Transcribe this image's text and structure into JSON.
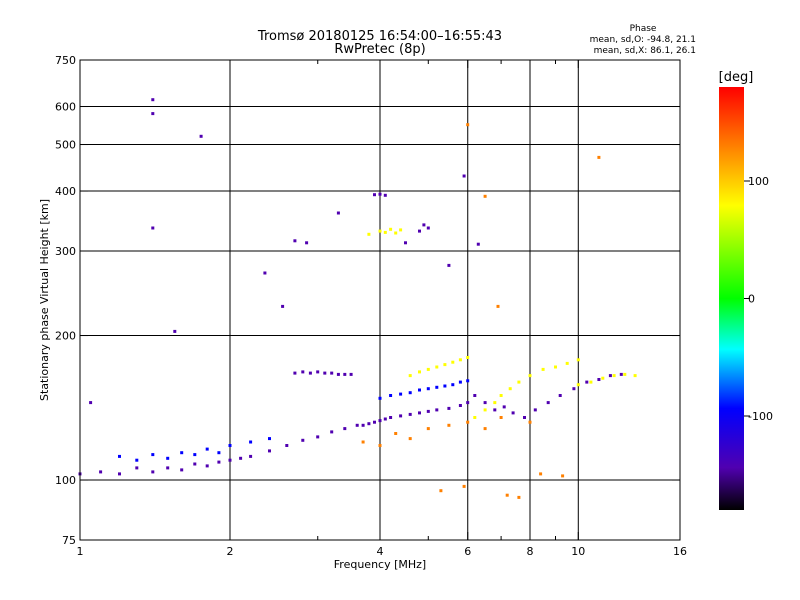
{
  "chart_data": {
    "type": "scatter",
    "title": "Tromsø 20180125 16:54:00–16:55:43",
    "subtitle": "RwPretec (8p)",
    "xlabel": "Frequency [MHz]",
    "ylabel": "Stationary phase Virtual Height [km]",
    "xscale": "log",
    "yscale": "log",
    "xlim": [
      1,
      16
    ],
    "ylim": [
      75,
      750
    ],
    "x_ticks": [
      1,
      2,
      4,
      6,
      8,
      10,
      16
    ],
    "x_tick_labels": [
      "1",
      "2",
      "4",
      "6",
      "8",
      "10",
      "16"
    ],
    "x_minor_ticks": [
      3,
      5,
      7,
      9
    ],
    "x_gridlines": [
      2,
      4,
      6,
      8,
      10
    ],
    "y_ticks": [
      75,
      100,
      200,
      300,
      400,
      500,
      600,
      750
    ],
    "y_tick_labels": [
      "75",
      "100",
      "200",
      "300",
      "400",
      "500",
      "600",
      "750"
    ],
    "y_gridlines": [
      100,
      200,
      300,
      400,
      500,
      600
    ],
    "grid": true,
    "stats": {
      "header": "Phase",
      "o_line": "mean, sd,O: -94.8, 21.1",
      "x_line": "mean, sd,X:  86.1, 26.1"
    },
    "colorbar": {
      "label": "[deg]",
      "range": [
        -180,
        180
      ],
      "ticks": [
        100,
        0,
        -100
      ],
      "tick_labels": [
        "100",
        "0",
        "-100"
      ],
      "colors": [
        "#ff0000",
        "#ff8000",
        "#ffff00",
        "#00ff00",
        "#00ffff",
        "#0000ff",
        "#5000b0",
        "#000000"
      ]
    },
    "traces": [
      {
        "name": "",
        "phase": -110,
        "x": [
          1.0,
          1.1,
          1.2,
          1.3,
          1.4,
          1.5,
          1.6,
          1.7,
          1.8,
          1.9,
          2.0,
          2.1,
          2.2,
          2.4,
          2.6,
          2.8,
          3.0,
          3.2,
          3.4,
          3.6
        ],
        "y": [
          103,
          104,
          103,
          106,
          104,
          106,
          105,
          108,
          107,
          109,
          110,
          111,
          112,
          115,
          118,
          121,
          123,
          126,
          128,
          130
        ]
      },
      {
        "name": "",
        "phase": -100,
        "x": [
          1.2,
          1.3,
          1.4,
          1.5,
          1.6,
          1.7,
          1.8,
          1.9,
          2.0,
          2.2,
          2.4
        ],
        "y": [
          112,
          110,
          113,
          111,
          114,
          113,
          116,
          114,
          118,
          120,
          122
        ]
      },
      {
        "name": "",
        "phase": -120,
        "x": [
          2.7,
          2.8,
          2.9,
          3.0,
          3.1,
          3.2,
          3.3,
          3.4,
          3.5
        ],
        "y": [
          167,
          168,
          167,
          168,
          167,
          167,
          166,
          166,
          166
        ]
      },
      {
        "name": "",
        "phase": -115,
        "x": [
          3.7,
          3.8,
          3.9,
          4.0,
          4.1,
          4.2,
          4.4,
          4.6,
          4.8,
          5.0,
          5.2,
          5.5,
          5.8,
          6.0
        ],
        "y": [
          130,
          131,
          132,
          133,
          134,
          135,
          136,
          137,
          138,
          139,
          140,
          141,
          143,
          145
        ]
      },
      {
        "name": "",
        "phase": -100,
        "x": [
          4.0,
          4.2,
          4.4,
          4.6,
          4.8,
          5.0,
          5.2,
          5.4,
          5.6,
          5.8,
          6.0
        ],
        "y": [
          148,
          150,
          151,
          152,
          154,
          155,
          156,
          157,
          158,
          160,
          161
        ]
      },
      {
        "name": "",
        "phase": 90,
        "x": [
          4.6,
          4.8,
          5.0,
          5.2,
          5.4,
          5.6,
          5.8,
          6.0
        ],
        "y": [
          165,
          168,
          170,
          172,
          174,
          176,
          178,
          180
        ]
      },
      {
        "name": "",
        "phase": 95,
        "x": [
          3.8,
          4.0,
          4.1,
          4.2,
          4.3,
          4.4
        ],
        "y": [
          325,
          330,
          328,
          333,
          327,
          332
        ]
      },
      {
        "name": "",
        "phase": -110,
        "x": [
          3.9,
          4.0,
          4.1,
          4.8,
          4.9,
          5.0
        ],
        "y": [
          393,
          394,
          392,
          330,
          340,
          335
        ]
      },
      {
        "name": "",
        "phase": 85,
        "x": [
          6.2,
          6.5,
          6.8,
          7.0,
          7.3,
          7.6,
          8.0,
          8.5,
          9.0,
          9.5,
          10.0
        ],
        "y": [
          135,
          140,
          145,
          150,
          155,
          160,
          165,
          170,
          172,
          175,
          178
        ]
      },
      {
        "name": "",
        "phase": -110,
        "x": [
          6.2,
          6.5,
          6.8,
          7.1,
          7.4,
          7.8,
          8.2,
          8.7,
          9.2,
          9.8,
          10.4,
          11.0,
          11.6,
          12.2
        ],
        "y": [
          150,
          145,
          140,
          142,
          138,
          135,
          140,
          145,
          150,
          155,
          160,
          162,
          165,
          166
        ]
      },
      {
        "name": "",
        "phase": 60,
        "x": [
          10.0,
          10.6,
          11.2,
          11.8,
          12.4,
          13.0
        ],
        "y": [
          158,
          160,
          163,
          165,
          166,
          165
        ]
      },
      {
        "name": "",
        "phase": 110,
        "x": [
          3.7,
          4.0,
          4.3,
          4.6,
          5.0,
          5.5,
          6.0,
          6.5,
          7.0,
          8.0
        ],
        "y": [
          120,
          118,
          125,
          122,
          128,
          130,
          132,
          128,
          135,
          132
        ]
      },
      {
        "name": "",
        "phase": -105,
        "x": [
          1.05,
          1.4,
          1.4,
          1.75,
          1.4,
          1.55,
          2.35,
          2.55,
          2.7,
          2.85,
          3.3,
          4.5,
          5.5,
          5.9,
          6.3
        ],
        "y": [
          145,
          620,
          580,
          520,
          335,
          204,
          270,
          230,
          315,
          312,
          360,
          312,
          280,
          430,
          310
        ]
      },
      {
        "name": "",
        "phase": 120,
        "x": [
          5.3,
          5.9,
          6.0,
          6.9,
          7.2,
          7.6,
          8.4,
          9.3,
          11.0,
          6.5
        ],
        "y": [
          95,
          97,
          550,
          230,
          93,
          92,
          103,
          102,
          470,
          390
        ]
      }
    ]
  }
}
